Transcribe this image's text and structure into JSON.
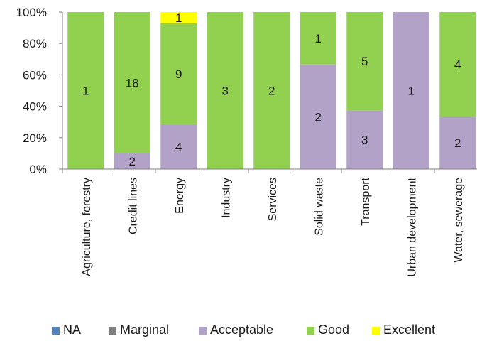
{
  "chart_data": {
    "type": "bar",
    "stacked": true,
    "percent_stacked": true,
    "categories": [
      "Agriculture, forestry",
      "Credit lines",
      "Energy",
      "Industry",
      "Services",
      "Solid waste",
      "Transport",
      "Urban development",
      "Water, sewerage"
    ],
    "series": [
      {
        "name": "NA",
        "color": "#4f81bd",
        "values": [
          0,
          0,
          0,
          0,
          0,
          0,
          0,
          0,
          0
        ]
      },
      {
        "name": "Marginal",
        "color": "#7f7f7f",
        "values": [
          0,
          0,
          0,
          0,
          0,
          0,
          0,
          0,
          0
        ]
      },
      {
        "name": "Acceptable",
        "color": "#b3a2c7",
        "values": [
          0,
          2,
          4,
          0,
          0,
          2,
          3,
          1,
          2
        ]
      },
      {
        "name": "Good",
        "color": "#92d050",
        "values": [
          1,
          18,
          9,
          3,
          2,
          1,
          5,
          0,
          4
        ]
      },
      {
        "name": "Excellent",
        "color": "#ffff00",
        "values": [
          0,
          0,
          1,
          0,
          0,
          0,
          0,
          0,
          0
        ]
      }
    ],
    "y_ticks": [
      "0%",
      "20%",
      "40%",
      "60%",
      "80%",
      "100%"
    ],
    "ylim": [
      0,
      100
    ],
    "grid": false,
    "legend_position": "bottom"
  }
}
